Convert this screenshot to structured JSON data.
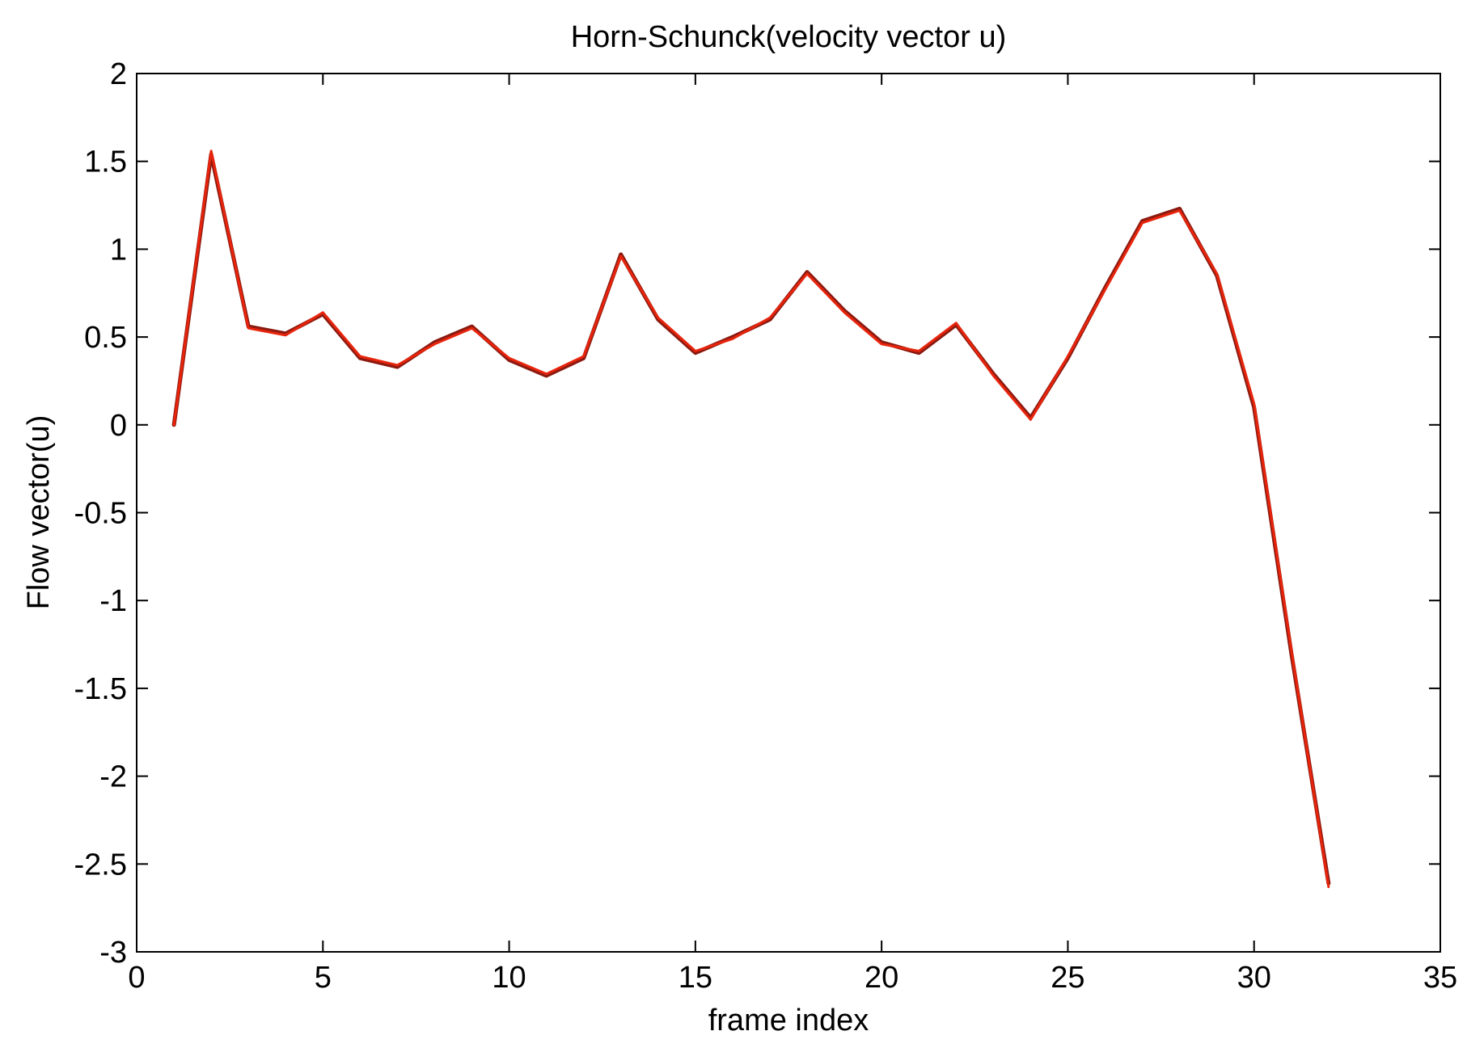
{
  "chart_data": {
    "type": "line",
    "title": "Horn-Schunck(velocity vector u)",
    "xlabel": "frame index",
    "ylabel": "Flow vector(u)",
    "xlim": [
      0,
      35
    ],
    "ylim": [
      -3,
      2
    ],
    "xticks": [
      0,
      5,
      10,
      15,
      20,
      25,
      30,
      35
    ],
    "xtick_labels": [
      "0",
      "5",
      "10",
      "15",
      "20",
      "25",
      "30",
      "35"
    ],
    "yticks": [
      2,
      1.5,
      1,
      0.5,
      0,
      -0.5,
      -1,
      -1.5,
      -2,
      -2.5,
      -3
    ],
    "ytick_labels": [
      "2",
      "1.5",
      "1",
      "0.5",
      "0",
      "-0.5",
      "-1",
      "-1.5",
      "-2",
      "-2.5",
      "-3"
    ],
    "grid": false,
    "series": [
      {
        "color": "#8b1a10",
        "x": [
          1,
          2,
          3,
          4,
          5,
          6,
          7,
          8,
          9,
          10,
          11,
          12,
          13,
          14,
          15,
          16,
          17,
          18,
          19,
          20,
          21,
          22,
          23,
          24,
          25,
          26,
          27,
          28,
          29,
          30,
          31,
          32
        ],
        "values": [
          0.0,
          1.54,
          0.56,
          0.52,
          0.63,
          0.38,
          0.33,
          0.47,
          0.56,
          0.37,
          0.28,
          0.38,
          0.97,
          0.6,
          0.41,
          0.5,
          0.6,
          0.87,
          0.65,
          0.47,
          0.41,
          0.57,
          0.29,
          0.04,
          0.38,
          0.78,
          1.16,
          1.23,
          0.85,
          0.1,
          -1.3,
          -2.61
        ]
      },
      {
        "color": "#e8240c",
        "x": [
          1,
          2,
          3,
          4,
          5,
          6,
          7,
          8,
          9,
          10,
          11,
          12,
          13,
          14,
          15,
          16,
          17,
          18,
          19,
          20,
          21,
          22,
          23,
          24,
          25,
          26,
          27,
          28,
          29,
          30,
          31,
          32
        ],
        "values": [
          0.0,
          1.56,
          0.55,
          0.51,
          0.64,
          0.39,
          0.34,
          0.46,
          0.55,
          0.38,
          0.29,
          0.39,
          0.96,
          0.61,
          0.42,
          0.49,
          0.61,
          0.86,
          0.64,
          0.46,
          0.42,
          0.58,
          0.28,
          0.03,
          0.39,
          0.77,
          1.15,
          1.22,
          0.86,
          0.12,
          -1.28,
          -2.63
        ]
      }
    ]
  }
}
